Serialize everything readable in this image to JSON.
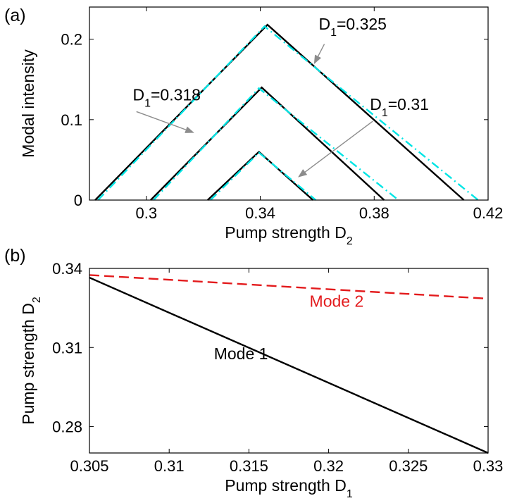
{
  "chart_data": [
    {
      "panel_label": "(a)",
      "type": "line",
      "xlabel": "Pump strength D",
      "xlabel_sub": "2",
      "ylabel": "Modal intensity",
      "xlim": [
        0.28,
        0.42
      ],
      "ylim": [
        0,
        0.24
      ],
      "xticks": [
        "0.3",
        "0.34",
        "0.38",
        "0.42"
      ],
      "xtick_values": [
        0.3,
        0.34,
        0.38,
        0.42
      ],
      "yticks": [
        "0",
        "0.1",
        "0.2"
      ],
      "ytick_values": [
        0,
        0.1,
        0.2
      ],
      "grid": false,
      "series": [
        {
          "group": "D1=0.325",
          "style": "solid",
          "color": "#000000",
          "x": [
            0.282,
            0.3425,
            0.4115
          ],
          "y": [
            0,
            0.218,
            0
          ]
        },
        {
          "group": "D1=0.325",
          "style": "dashdot",
          "color": "#00e5e5",
          "x": [
            0.283,
            0.3415,
            0.4165
          ],
          "y": [
            0,
            0.216,
            0
          ]
        },
        {
          "group": "D1=0.318",
          "style": "solid",
          "color": "#000000",
          "x": [
            0.3015,
            0.3405,
            0.3835
          ],
          "y": [
            0,
            0.14,
            0
          ]
        },
        {
          "group": "D1=0.318",
          "style": "dashdot",
          "color": "#00e5e5",
          "x": [
            0.3025,
            0.3395,
            0.3885
          ],
          "y": [
            0,
            0.139,
            0
          ]
        },
        {
          "group": "D1=0.31",
          "style": "solid",
          "color": "#000000",
          "x": [
            0.3215,
            0.3395,
            0.3585
          ],
          "y": [
            0,
            0.06,
            0
          ]
        },
        {
          "group": "D1=0.31",
          "style": "dashdot",
          "color": "#00e5e5",
          "x": [
            0.3225,
            0.3395,
            0.3595
          ],
          "y": [
            0,
            0.059,
            0
          ]
        }
      ],
      "annotations": [
        {
          "text": "D",
          "sub": "1",
          "rest": "=0.325",
          "text_at": [
            0.3605,
            0.212
          ],
          "arrow_from": [
            0.3625,
            0.194
          ],
          "arrow_to": [
            0.359,
            0.17
          ]
        },
        {
          "text": "D",
          "sub": "1",
          "rest": "=0.318",
          "text_at": [
            0.2952,
            0.124
          ],
          "arrow_from": [
            0.2965,
            0.11
          ],
          "arrow_to": [
            0.3165,
            0.084
          ]
        },
        {
          "text": "D",
          "sub": "1",
          "rest": "=0.31",
          "text_at": [
            0.3785,
            0.112
          ],
          "arrow_from": [
            0.3795,
            0.098
          ],
          "arrow_to": [
            0.3535,
            0.029
          ]
        }
      ]
    },
    {
      "panel_label": "(b)",
      "type": "line",
      "xlabel": "Pump strength D",
      "xlabel_sub": "1",
      "ylabel": "Pump strength D",
      "ylabel_sub": "2",
      "xlim": [
        0.305,
        0.33
      ],
      "ylim": [
        0.27,
        0.34
      ],
      "xticks": [
        "0.305",
        "0.31",
        "0.315",
        "0.32",
        "0.325",
        "0.33"
      ],
      "xtick_values": [
        0.305,
        0.31,
        0.315,
        0.32,
        0.325,
        0.33
      ],
      "yticks": [
        "0.28",
        "0.31",
        "0.34"
      ],
      "ytick_values": [
        0.28,
        0.31,
        0.34
      ],
      "grid": false,
      "series": [
        {
          "name": "Mode 1",
          "style": "solid",
          "color": "#000000",
          "x": [
            0.305,
            0.33
          ],
          "y": [
            0.3365,
            0.27
          ]
        },
        {
          "name": "Mode 2",
          "style": "dashed",
          "color": "#e31a1c",
          "x": [
            0.305,
            0.33
          ],
          "y": [
            0.3375,
            0.3285
          ]
        }
      ],
      "labels": [
        {
          "text": "Mode 2",
          "color": "#e31a1c",
          "at": [
            0.3205,
            0.3255
          ]
        },
        {
          "text": "Mode 1",
          "color": "#000000",
          "at": [
            0.3145,
            0.3055
          ]
        }
      ]
    }
  ]
}
